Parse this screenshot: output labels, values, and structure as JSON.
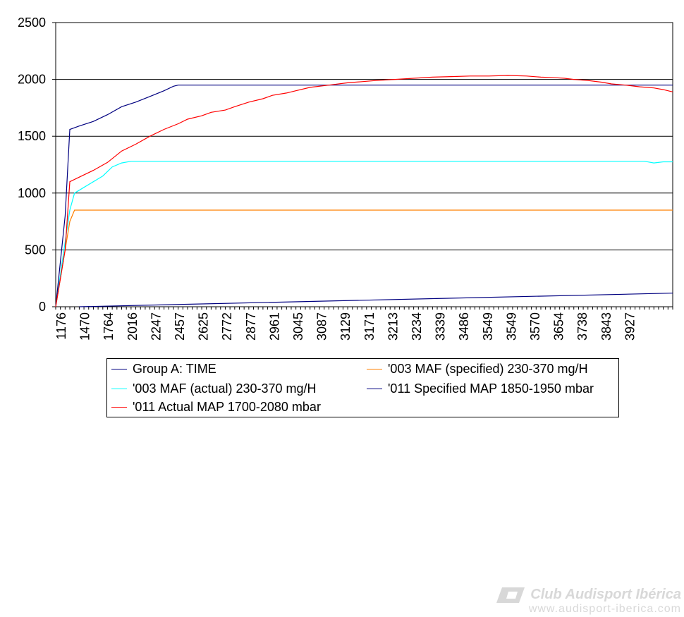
{
  "chart_data": {
    "type": "line",
    "title": "",
    "xlabel": "",
    "ylabel": "",
    "ylim": [
      0,
      2500
    ],
    "yticks": [
      0,
      500,
      1000,
      1500,
      2000,
      2500
    ],
    "grid": "horizontal",
    "legend_position": "bottom",
    "x_tick_labels": [
      "1176",
      "1470",
      "1764",
      "2016",
      "2247",
      "2457",
      "2625",
      "2772",
      "2877",
      "2961",
      "3045",
      "3087",
      "3129",
      "3171",
      "3213",
      "3234",
      "3339",
      "3486",
      "3549",
      "3549",
      "3570",
      "3654",
      "3738",
      "3843",
      "3927"
    ],
    "points_count": 132,
    "series": [
      {
        "name": "Group A: TIME",
        "color": "#000080",
        "points": [
          [
            5,
            0
          ],
          [
            131,
            120
          ]
        ]
      },
      {
        "name": "'003 MAF (specified) 230-370 mg/H",
        "color": "#ff8000",
        "points": [
          [
            0,
            0
          ],
          [
            3,
            750
          ],
          [
            4,
            850
          ],
          [
            131,
            850
          ]
        ]
      },
      {
        "name": "'003 MAF (actual) 230-370 mg/H",
        "color": "#00ffff",
        "points": [
          [
            0,
            0
          ],
          [
            3,
            850
          ],
          [
            4,
            1000
          ],
          [
            6,
            1050
          ],
          [
            8,
            1100
          ],
          [
            10,
            1150
          ],
          [
            12,
            1230
          ],
          [
            14,
            1265
          ],
          [
            16,
            1280
          ],
          [
            125,
            1280
          ],
          [
            127,
            1265
          ],
          [
            129,
            1275
          ],
          [
            131,
            1275
          ]
        ]
      },
      {
        "name": "'011 Specified MAP 1850-1950 mbar",
        "color": "#000080",
        "points": [
          [
            0,
            0
          ],
          [
            2,
            800
          ],
          [
            3,
            1560
          ],
          [
            5,
            1590
          ],
          [
            8,
            1630
          ],
          [
            11,
            1690
          ],
          [
            14,
            1760
          ],
          [
            17,
            1800
          ],
          [
            20,
            1850
          ],
          [
            23,
            1900
          ],
          [
            25,
            1940
          ],
          [
            26,
            1950
          ],
          [
            131,
            1950
          ]
        ]
      },
      {
        "name": "'011 Actual MAP 1700-2080 mbar",
        "color": "#ff0000",
        "points": [
          [
            0,
            0
          ],
          [
            2,
            500
          ],
          [
            3,
            1100
          ],
          [
            5,
            1140
          ],
          [
            8,
            1200
          ],
          [
            11,
            1270
          ],
          [
            14,
            1370
          ],
          [
            17,
            1430
          ],
          [
            20,
            1500
          ],
          [
            23,
            1560
          ],
          [
            26,
            1610
          ],
          [
            28,
            1650
          ],
          [
            31,
            1680
          ],
          [
            33,
            1710
          ],
          [
            36,
            1730
          ],
          [
            38,
            1760
          ],
          [
            41,
            1800
          ],
          [
            44,
            1830
          ],
          [
            46,
            1860
          ],
          [
            49,
            1880
          ],
          [
            51,
            1900
          ],
          [
            54,
            1930
          ],
          [
            58,
            1950
          ],
          [
            62,
            1970
          ],
          [
            65,
            1980
          ],
          [
            68,
            1990
          ],
          [
            72,
            2000
          ],
          [
            76,
            2010
          ],
          [
            80,
            2020
          ],
          [
            84,
            2025
          ],
          [
            88,
            2030
          ],
          [
            92,
            2030
          ],
          [
            96,
            2035
          ],
          [
            100,
            2030
          ],
          [
            103,
            2020
          ],
          [
            106,
            2015
          ],
          [
            108,
            2010
          ],
          [
            110,
            2000
          ],
          [
            113,
            1990
          ],
          [
            116,
            1975
          ],
          [
            118,
            1960
          ],
          [
            121,
            1950
          ],
          [
            124,
            1935
          ],
          [
            127,
            1925
          ],
          [
            129,
            1910
          ],
          [
            131,
            1890
          ]
        ]
      }
    ]
  },
  "watermark": {
    "title": "Club Audisport Ibérica",
    "url": "www.audisport-iberica.com"
  }
}
